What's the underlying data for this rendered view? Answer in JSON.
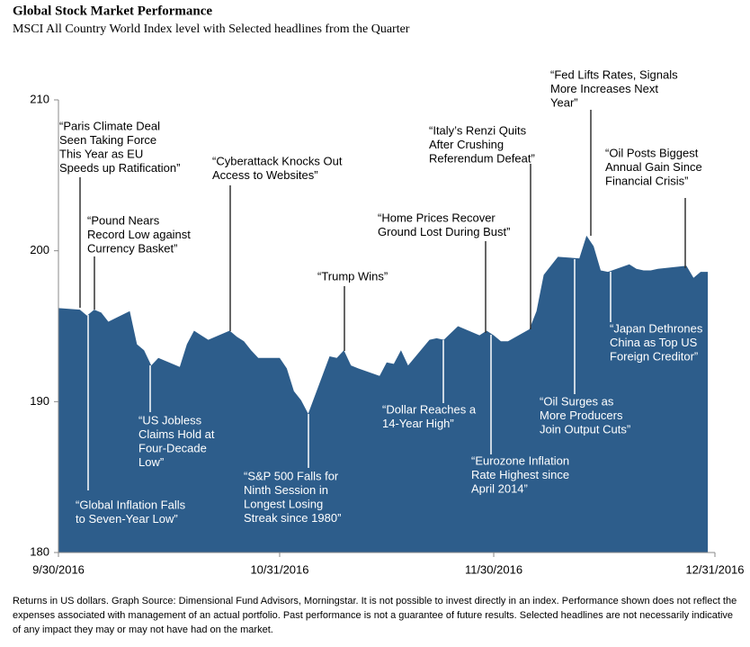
{
  "chart_data": {
    "type": "area",
    "title": "Global Stock Market Performance",
    "subtitle": "MSCI All Country World Index level with Selected headlines from the Quarter",
    "x": [
      "9/30/2016",
      "10/3/2016",
      "10/4/2016",
      "10/5/2016",
      "10/6/2016",
      "10/7/2016",
      "10/10/2016",
      "10/11/2016",
      "10/12/2016",
      "10/13/2016",
      "10/14/2016",
      "10/17/2016",
      "10/18/2016",
      "10/19/2016",
      "10/20/2016",
      "10/21/2016",
      "10/24/2016",
      "10/25/2016",
      "10/26/2016",
      "10/27/2016",
      "10/28/2016",
      "10/31/2016",
      "11/1/2016",
      "11/2/2016",
      "11/3/2016",
      "11/4/2016",
      "11/7/2016",
      "11/8/2016",
      "11/9/2016",
      "11/10/2016",
      "11/11/2016",
      "11/14/2016",
      "11/15/2016",
      "11/16/2016",
      "11/17/2016",
      "11/18/2016",
      "11/21/2016",
      "11/22/2016",
      "11/23/2016",
      "11/25/2016",
      "11/28/2016",
      "11/29/2016",
      "11/30/2016",
      "12/1/2016",
      "12/2/2016",
      "12/5/2016",
      "12/6/2016",
      "12/7/2016",
      "12/8/2016",
      "12/9/2016",
      "12/12/2016",
      "12/13/2016",
      "12/14/2016",
      "12/15/2016",
      "12/16/2016",
      "12/19/2016",
      "12/20/2016",
      "12/21/2016",
      "12/22/2016",
      "12/23/2016",
      "12/27/2016",
      "12/28/2016",
      "12/29/2016",
      "12/30/2016"
    ],
    "values": [
      196.2,
      196.1,
      195.7,
      196.1,
      195.9,
      195.3,
      196.0,
      193.8,
      193.4,
      192.4,
      192.9,
      192.3,
      193.8,
      194.7,
      194.4,
      194.1,
      194.7,
      194.3,
      194.0,
      193.4,
      192.9,
      192.9,
      192.2,
      190.7,
      190.1,
      189.2,
      193.0,
      192.9,
      193.4,
      192.4,
      192.2,
      191.7,
      192.6,
      192.5,
      193.4,
      192.4,
      194.1,
      194.2,
      194.1,
      195.0,
      194.4,
      194.7,
      194.4,
      194.0,
      194.0,
      194.8,
      196.0,
      198.4,
      199.0,
      199.6,
      199.5,
      201.0,
      200.3,
      198.7,
      198.6,
      199.1,
      198.8,
      198.7,
      198.7,
      198.8,
      199.0,
      198.2,
      198.6,
      198.6
    ],
    "color": "#2d5d8b",
    "xlim": [
      "9/30/2016",
      "12/31/2016"
    ],
    "xticks": [
      "9/30/2016",
      "10/31/2016",
      "11/30/2016",
      "12/31/2016"
    ],
    "ylim": [
      180,
      210
    ],
    "yticks": [
      180,
      190,
      200,
      210
    ],
    "annotations": [
      {
        "lines": [
          "“Paris Climate Deal",
          "Seen Taking Force",
          "This Year as EU",
          "Speeds up Ratification”"
        ]
      },
      {
        "lines": [
          "“Pound Nears",
          "Record Low against",
          "Currency Basket”"
        ]
      },
      {
        "lines": [
          "“Global Inflation Falls",
          "to Seven-Year Low”"
        ]
      },
      {
        "lines": [
          "“US Jobless",
          "Claims Hold at",
          "Four-Decade",
          "Low”"
        ]
      },
      {
        "lines": [
          "“Cyberattack Knocks Out",
          "Access to Websites”"
        ]
      },
      {
        "lines": [
          "“S&P 500 Falls for",
          "Ninth Session in",
          "Longest Losing",
          "Streak since 1980”"
        ]
      },
      {
        "lines": [
          "“Trump Wins”"
        ]
      },
      {
        "lines": [
          "“Dollar Reaches a",
          "14-Year High”"
        ]
      },
      {
        "lines": [
          "“Home Prices Recover",
          "Ground Lost During Bust”"
        ]
      },
      {
        "lines": [
          "“Eurozone Inflation",
          "Rate Highest since",
          "April 2014”"
        ]
      },
      {
        "lines": [
          "“Italy’s Renzi Quits",
          "After Crushing",
          "Referendum Defeat”"
        ]
      },
      {
        "lines": [
          "“Fed Lifts Rates, Signals",
          "More Increases Next",
          "Year”"
        ]
      },
      {
        "lines": [
          "“Oil Surges as",
          "More Producers",
          "Join Output Cuts”"
        ]
      },
      {
        "lines": [
          "“Oil Posts Biggest",
          "Annual Gain Since",
          "Financial Crisis”"
        ]
      },
      {
        "lines": [
          "“Japan Dethrones",
          "China as Top US",
          "Foreign Creditor”"
        ]
      }
    ],
    "footnote": "Returns in US dollars. Graph Source: Dimensional Fund Advisors, Morningstar. It is not possible to invest directly in an index. Performance shown does not reflect the expenses associated with management of an actual portfolio. Past performance is not a guarantee of future results. Selected headlines are not necessarily indicative of any impact they may or may not have had on the market."
  }
}
